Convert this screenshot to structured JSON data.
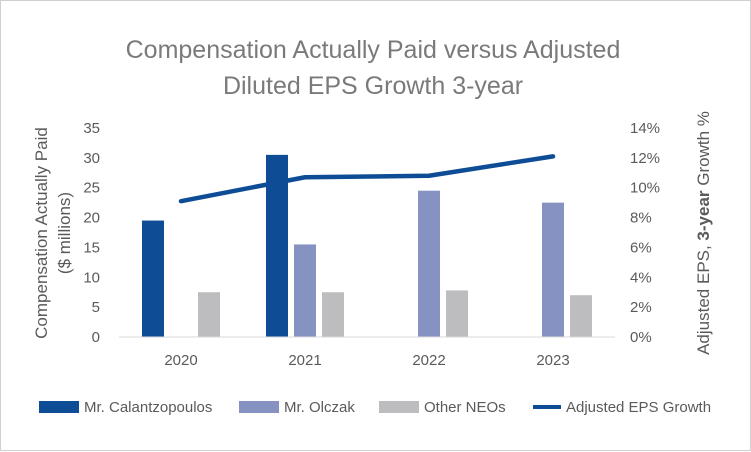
{
  "chart_data": {
    "type": "bar",
    "title_lines": [
      "Compensation Actually Paid versus Adjusted",
      "Diluted EPS Growth 3-year"
    ],
    "categories": [
      "2020",
      "2021",
      "2022",
      "2023"
    ],
    "ylabel_left_lines": [
      "Compensation Actually Paid",
      "($ millions)"
    ],
    "ylabel_right_parts": [
      "Adjusted EPS, ",
      "3-year",
      " Growth %"
    ],
    "ylim_left": [
      0,
      35
    ],
    "yticks_left": [
      "0",
      "5",
      "10",
      "15",
      "20",
      "25",
      "30",
      "35"
    ],
    "ylim_right": [
      0,
      14
    ],
    "yticks_right": [
      "0%",
      "2%",
      "4%",
      "6%",
      "8%",
      "10%",
      "12%",
      "14%"
    ],
    "grid": false,
    "legend_position": "bottom",
    "series": [
      {
        "name": "Mr. Calantzopoulos",
        "type": "bar",
        "color": "#0e4d96",
        "values": [
          19.5,
          30.5,
          null,
          null
        ]
      },
      {
        "name": "Mr. Olczak",
        "type": "bar",
        "color": "#8592c2",
        "values": [
          null,
          15.5,
          24.5,
          22.5
        ]
      },
      {
        "name": "Other NEOs",
        "type": "bar",
        "color": "#bdbdc0",
        "values": [
          7.5,
          7.5,
          7.8,
          7.0
        ]
      },
      {
        "name": "Adjusted EPS Growth",
        "type": "line",
        "axis": "right",
        "color": "#0e4d96",
        "values": [
          9.1,
          10.7,
          10.8,
          12.1
        ]
      }
    ]
  }
}
